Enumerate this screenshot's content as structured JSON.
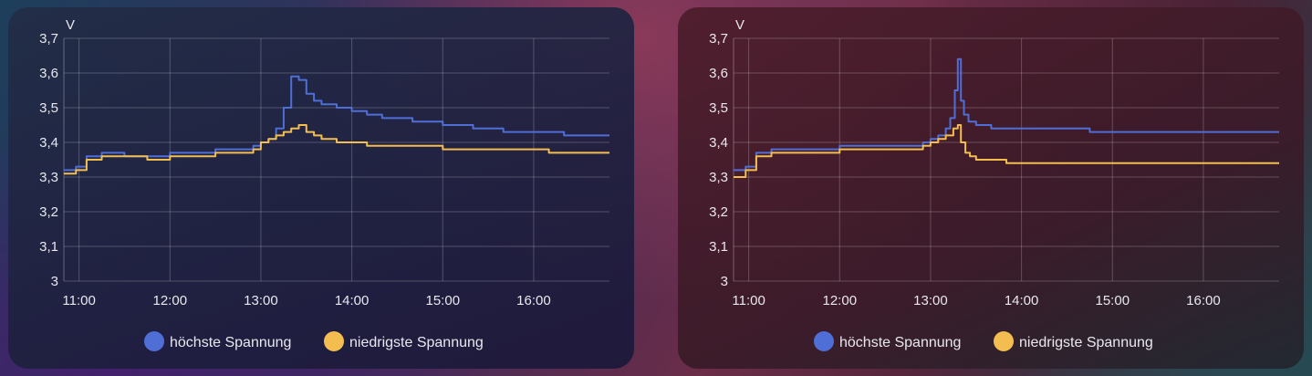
{
  "colors": {
    "high": "#4f6ed6",
    "low": "#f3bd4f"
  },
  "chart_data": [
    {
      "type": "line",
      "ylabel": "V",
      "ylim": [
        3.0,
        3.7
      ],
      "xlim": [
        "10:50",
        "16:50"
      ],
      "yticks": [
        "3",
        "3,1",
        "3,2",
        "3,3",
        "3,4",
        "3,5",
        "3,6",
        "3,7"
      ],
      "xticks": [
        "11:00",
        "12:00",
        "13:00",
        "14:00",
        "15:00",
        "16:00"
      ],
      "legend": [
        "höchste Spannung",
        "niedrigste Spannung"
      ],
      "series": [
        {
          "name": "höchste Spannung",
          "x": [
            "10:50",
            "10:58",
            "11:05",
            "11:15",
            "11:30",
            "11:45",
            "12:00",
            "12:15",
            "12:30",
            "12:45",
            "12:55",
            "13:00",
            "13:05",
            "13:10",
            "13:15",
            "13:20",
            "13:25",
            "13:30",
            "13:35",
            "13:40",
            "13:45",
            "13:50",
            "14:00",
            "14:10",
            "14:20",
            "14:40",
            "15:00",
            "15:20",
            "15:40",
            "16:00",
            "16:20",
            "16:50"
          ],
          "y": [
            3.32,
            3.33,
            3.36,
            3.37,
            3.36,
            3.36,
            3.37,
            3.37,
            3.38,
            3.38,
            3.39,
            3.4,
            3.41,
            3.44,
            3.5,
            3.59,
            3.58,
            3.54,
            3.52,
            3.51,
            3.51,
            3.5,
            3.49,
            3.48,
            3.47,
            3.46,
            3.45,
            3.44,
            3.43,
            3.43,
            3.42,
            3.42
          ]
        },
        {
          "name": "niedrigste Spannung",
          "x": [
            "10:50",
            "10:58",
            "11:05",
            "11:15",
            "11:30",
            "11:45",
            "12:00",
            "12:15",
            "12:30",
            "12:45",
            "12:55",
            "13:00",
            "13:05",
            "13:10",
            "13:15",
            "13:20",
            "13:25",
            "13:30",
            "13:35",
            "13:40",
            "13:50",
            "14:00",
            "14:10",
            "14:30",
            "15:00",
            "15:20",
            "15:40",
            "16:00",
            "16:10",
            "16:50"
          ],
          "y": [
            3.31,
            3.32,
            3.35,
            3.36,
            3.36,
            3.35,
            3.36,
            3.36,
            3.37,
            3.37,
            3.38,
            3.4,
            3.41,
            3.42,
            3.43,
            3.44,
            3.45,
            3.43,
            3.42,
            3.41,
            3.4,
            3.4,
            3.39,
            3.39,
            3.38,
            3.38,
            3.38,
            3.38,
            3.37,
            3.37
          ]
        }
      ]
    },
    {
      "type": "line",
      "ylabel": "V",
      "ylim": [
        3.0,
        3.7
      ],
      "xlim": [
        "10:50",
        "16:50"
      ],
      "yticks": [
        "3",
        "3,1",
        "3,2",
        "3,3",
        "3,4",
        "3,5",
        "3,6",
        "3,7"
      ],
      "xticks": [
        "11:00",
        "12:00",
        "13:00",
        "14:00",
        "15:00",
        "16:00"
      ],
      "legend": [
        "höchste Spannung",
        "niedrigste Spannung"
      ],
      "series": [
        {
          "name": "höchste Spannung",
          "x": [
            "10:50",
            "10:58",
            "11:05",
            "11:15",
            "11:30",
            "11:45",
            "12:00",
            "12:15",
            "12:30",
            "12:45",
            "12:55",
            "13:00",
            "13:05",
            "13:10",
            "13:13",
            "13:16",
            "13:18",
            "13:20",
            "13:22",
            "13:25",
            "13:30",
            "13:40",
            "13:50",
            "14:00",
            "14:20",
            "14:40",
            "14:45",
            "15:00",
            "15:30",
            "16:00",
            "16:50"
          ],
          "y": [
            3.32,
            3.33,
            3.37,
            3.38,
            3.38,
            3.38,
            3.39,
            3.39,
            3.39,
            3.39,
            3.4,
            3.41,
            3.42,
            3.44,
            3.47,
            3.55,
            3.64,
            3.52,
            3.48,
            3.46,
            3.45,
            3.44,
            3.44,
            3.44,
            3.44,
            3.44,
            3.43,
            3.43,
            3.43,
            3.43,
            3.43
          ]
        },
        {
          "name": "niedrigste Spannung",
          "x": [
            "10:50",
            "10:58",
            "11:05",
            "11:15",
            "11:30",
            "11:45",
            "12:00",
            "12:15",
            "12:30",
            "12:45",
            "12:55",
            "13:00",
            "13:05",
            "13:10",
            "13:15",
            "13:18",
            "13:20",
            "13:23",
            "13:26",
            "13:30",
            "13:40",
            "13:50",
            "14:00",
            "14:30",
            "15:00",
            "16:00",
            "16:50"
          ],
          "y": [
            3.3,
            3.32,
            3.36,
            3.37,
            3.37,
            3.37,
            3.38,
            3.38,
            3.38,
            3.38,
            3.39,
            3.4,
            3.41,
            3.42,
            3.44,
            3.45,
            3.4,
            3.37,
            3.36,
            3.35,
            3.35,
            3.34,
            3.34,
            3.34,
            3.34,
            3.34,
            3.34
          ]
        }
      ]
    }
  ]
}
